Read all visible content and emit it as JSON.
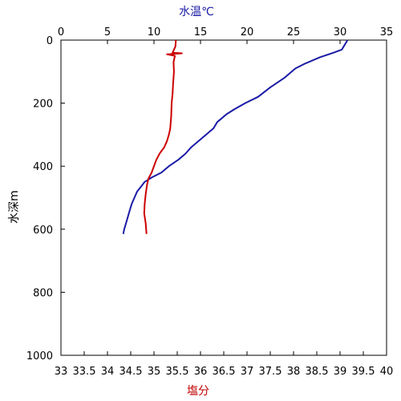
{
  "chart_data": {
    "type": "line",
    "top_axis": {
      "label": "水温℃",
      "label_color": "#1a1aa6",
      "range": [
        0,
        35
      ],
      "ticks": [
        "0",
        "5",
        "10",
        "15",
        "20",
        "25",
        "30",
        "35"
      ]
    },
    "bottom_axis": {
      "label": "塩分",
      "label_color": "#c00000",
      "range": [
        33,
        40
      ],
      "ticks": [
        "33",
        "33.5",
        "34",
        "34.5",
        "35",
        "35.5",
        "36",
        "36.5",
        "37",
        "37.5",
        "38",
        "38.5",
        "39",
        "39.5",
        "40"
      ]
    },
    "left_axis": {
      "label": "水深m",
      "range": [
        0,
        1000
      ],
      "inverted": true,
      "ticks": [
        "0",
        "200",
        "400",
        "600",
        "800",
        "1000"
      ]
    },
    "grid": false,
    "series": [
      {
        "color": "#1a1aa6",
        "x_axis": "top",
        "points": [
          [
            30.8,
            0
          ],
          [
            30.6,
            10
          ],
          [
            30.2,
            30
          ],
          [
            29.3,
            40
          ],
          [
            27.8,
            55
          ],
          [
            26.2,
            75
          ],
          [
            25.2,
            90
          ],
          [
            24.0,
            120
          ],
          [
            22.5,
            150
          ],
          [
            21.2,
            180
          ],
          [
            19.8,
            200
          ],
          [
            18.6,
            220
          ],
          [
            17.8,
            235
          ],
          [
            17.2,
            250
          ],
          [
            16.8,
            260
          ],
          [
            16.4,
            280
          ],
          [
            15.6,
            300
          ],
          [
            14.8,
            320
          ],
          [
            14.0,
            340
          ],
          [
            13.4,
            360
          ],
          [
            12.6,
            380
          ],
          [
            11.6,
            400
          ],
          [
            10.8,
            420
          ],
          [
            9.8,
            435
          ],
          [
            9.0,
            450
          ],
          [
            8.6,
            465
          ],
          [
            8.2,
            480
          ],
          [
            7.9,
            500
          ],
          [
            7.6,
            520
          ],
          [
            7.4,
            540
          ],
          [
            7.1,
            570
          ],
          [
            6.8,
            600
          ],
          [
            6.7,
            615
          ]
        ]
      },
      {
        "color": "#cc0000",
        "x_axis": "bottom",
        "points": [
          [
            35.47,
            0
          ],
          [
            35.46,
            20
          ],
          [
            35.4,
            40
          ],
          [
            35.6,
            42
          ],
          [
            35.28,
            45
          ],
          [
            35.45,
            50
          ],
          [
            35.42,
            70
          ],
          [
            35.43,
            100
          ],
          [
            35.41,
            140
          ],
          [
            35.4,
            170
          ],
          [
            35.38,
            200
          ],
          [
            35.37,
            240
          ],
          [
            35.35,
            280
          ],
          [
            35.32,
            300
          ],
          [
            35.28,
            320
          ],
          [
            35.22,
            340
          ],
          [
            35.12,
            360
          ],
          [
            35.05,
            380
          ],
          [
            35.0,
            400
          ],
          [
            34.95,
            420
          ],
          [
            34.88,
            440
          ],
          [
            34.85,
            460
          ],
          [
            34.82,
            490
          ],
          [
            34.8,
            520
          ],
          [
            34.79,
            550
          ],
          [
            34.82,
            580
          ],
          [
            34.84,
            615
          ]
        ]
      }
    ]
  }
}
